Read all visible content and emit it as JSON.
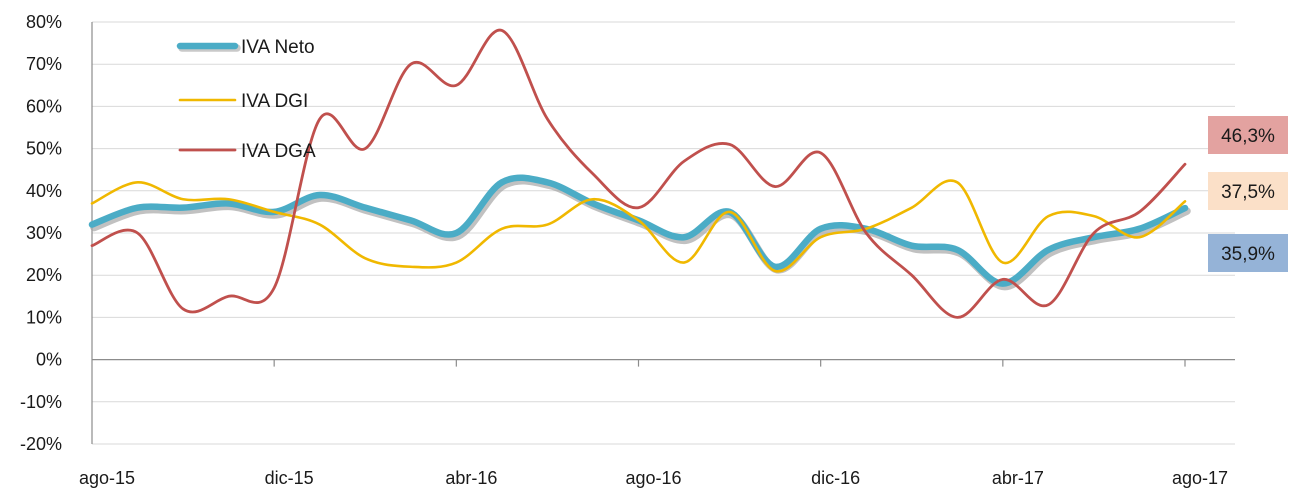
{
  "chart_data": {
    "type": "line",
    "title": "",
    "xlabel": "",
    "ylabel": "",
    "ylim": [
      -20,
      80
    ],
    "y_ticks": [
      "80%",
      "70%",
      "60%",
      "50%",
      "40%",
      "30%",
      "20%",
      "10%",
      "0%",
      "-10%",
      "-20%"
    ],
    "y_tick_values": [
      80,
      70,
      60,
      50,
      40,
      30,
      20,
      10,
      0,
      -10,
      -20
    ],
    "x_ticks": [
      "ago-15",
      "dic-15",
      "abr-16",
      "ago-16",
      "dic-16",
      "abr-17",
      "ago-17"
    ],
    "x_tick_positions": [
      0,
      4,
      8,
      12,
      16,
      20,
      24
    ],
    "x": [
      "ago-15",
      "sep-15",
      "oct-15",
      "nov-15",
      "dic-15",
      "ene-16",
      "feb-16",
      "mar-16",
      "abr-16",
      "may-16",
      "jun-16",
      "jul-16",
      "ago-16",
      "sep-16",
      "oct-16",
      "nov-16",
      "dic-16",
      "ene-17",
      "feb-17",
      "mar-17",
      "abr-17",
      "may-17",
      "jun-17",
      "jul-17",
      "ago-17"
    ],
    "grid": true,
    "legend_position": "top-left",
    "series": [
      {
        "name": "IVA Neto",
        "color": "#4bacc6",
        "values": [
          32,
          36,
          36,
          37,
          35,
          39,
          36,
          33,
          30,
          42,
          42,
          37,
          33,
          29,
          35,
          22,
          31,
          31,
          27,
          26,
          18,
          26,
          29,
          31,
          35.9
        ]
      },
      {
        "name": "IVA DGI",
        "color": "#f0b800",
        "values": [
          37,
          42,
          38,
          38,
          35,
          32,
          24,
          22,
          23,
          31,
          32,
          38,
          33,
          23,
          35,
          21,
          29,
          31,
          36,
          42,
          23,
          34,
          34,
          29,
          37.5
        ]
      },
      {
        "name": "IVA DGA",
        "color": "#c0504d",
        "values": [
          27,
          30,
          12,
          15,
          17,
          57,
          50,
          70,
          65,
          78,
          57,
          44,
          36,
          47,
          51,
          41,
          49,
          30,
          20,
          10,
          19,
          13,
          30,
          35,
          46.3
        ]
      }
    ],
    "end_labels": [
      {
        "series": "IVA DGA",
        "text": "46,3%",
        "bg": "#e3a2a0"
      },
      {
        "series": "IVA DGI",
        "text": "37,5%",
        "bg": "#fbe0c8"
      },
      {
        "series": "IVA Neto",
        "text": "35,9%",
        "bg": "#95b3d7"
      }
    ]
  }
}
